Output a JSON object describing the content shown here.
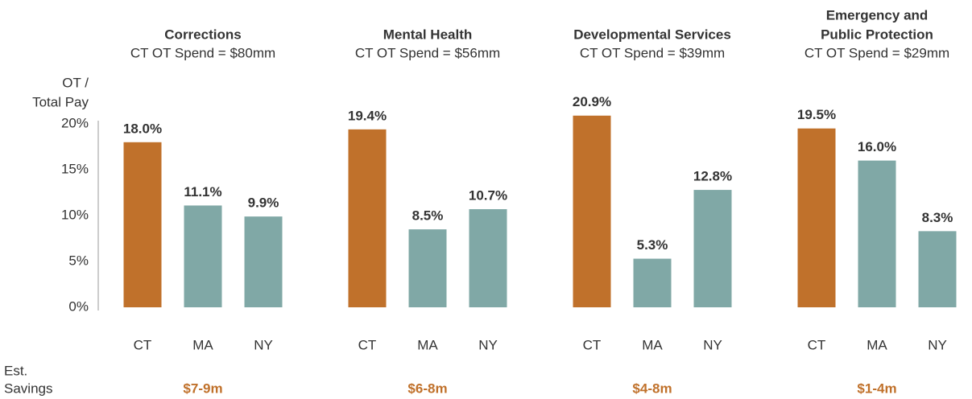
{
  "chart_data": [
    {
      "type": "bar",
      "title": "Corrections",
      "subtitle": "CT OT Spend = $80mm",
      "categories": [
        "CT",
        "MA",
        "NY"
      ],
      "values": [
        18.0,
        11.1,
        9.9
      ],
      "value_labels": [
        "18.0%",
        "11.1%",
        "9.9%"
      ],
      "colors": [
        "#c0712b",
        "#80a8a6",
        "#80a8a6"
      ],
      "ylabel": [
        "OT /",
        "Total Pay"
      ],
      "ylim": [
        0,
        20
      ],
      "yticks": [
        {
          "value": 0,
          "label": "0%"
        },
        {
          "value": 5,
          "label": "5%"
        },
        {
          "value": 10,
          "label": "10%"
        },
        {
          "value": 15,
          "label": "15%"
        },
        {
          "value": 20,
          "label": "20%"
        }
      ],
      "savings": "$7-9m"
    },
    {
      "type": "bar",
      "title": "Mental Health",
      "subtitle": "CT OT Spend = $56mm",
      "categories": [
        "CT",
        "MA",
        "NY"
      ],
      "values": [
        19.4,
        8.5,
        10.7
      ],
      "value_labels": [
        "19.4%",
        "8.5%",
        "10.7%"
      ],
      "colors": [
        "#c0712b",
        "#80a8a6",
        "#80a8a6"
      ],
      "ylim": [
        0,
        20
      ],
      "savings": "$6-8m"
    },
    {
      "type": "bar",
      "title": "Developmental Services",
      "subtitle": "CT OT Spend = $39mm",
      "categories": [
        "CT",
        "MA",
        "NY"
      ],
      "values": [
        20.9,
        5.3,
        12.8
      ],
      "value_labels": [
        "20.9%",
        "5.3%",
        "12.8%"
      ],
      "colors": [
        "#c0712b",
        "#80a8a6",
        "#80a8a6"
      ],
      "ylim": [
        0,
        20
      ],
      "savings": "$4-8m"
    },
    {
      "type": "bar",
      "title": [
        "Emergency and",
        "Public Protection"
      ],
      "subtitle": "CT OT Spend = $29mm",
      "categories": [
        "CT",
        "MA",
        "NY"
      ],
      "values": [
        19.5,
        16.0,
        8.3
      ],
      "value_labels": [
        "19.5%",
        "16.0%",
        "8.3%"
      ],
      "colors": [
        "#c0712b",
        "#80a8a6",
        "#80a8a6"
      ],
      "ylim": [
        0,
        20
      ],
      "savings": "$1-4m"
    }
  ],
  "footer_label": [
    "Est.",
    "Savings"
  ]
}
